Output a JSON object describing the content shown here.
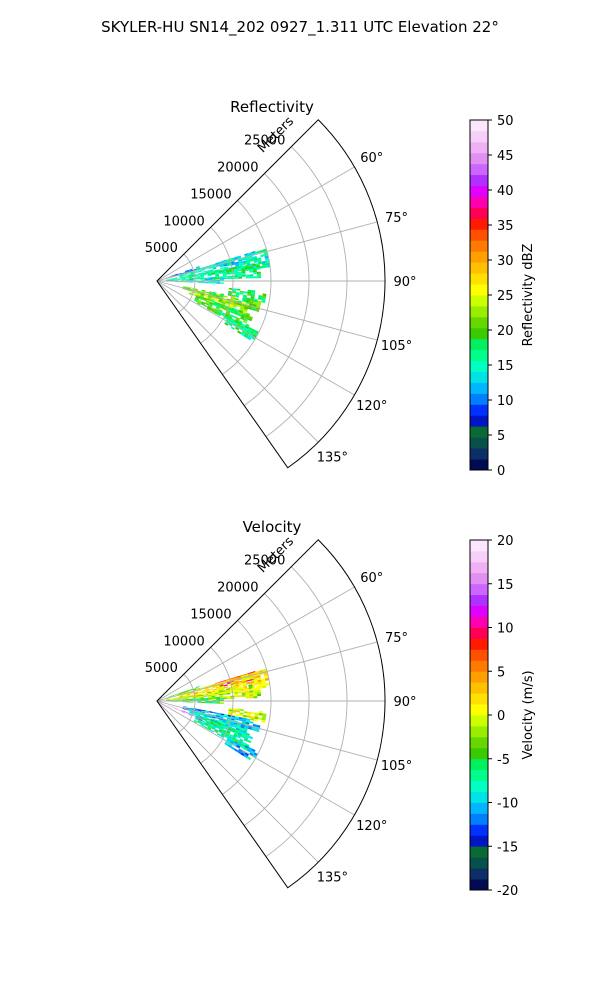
{
  "figure_title": "SKYLER-HU  SN14_202  0927_1.311 UTC Elevation 22°",
  "chart_data": [
    {
      "type": "heatmap",
      "subtype": "polar-sector",
      "title": "Reflectivity",
      "range_label": "Meters",
      "r_ticks": [
        "5000",
        "10000",
        "15000",
        "20000",
        "25000"
      ],
      "r_values": [
        5000,
        10000,
        15000,
        20000,
        25000
      ],
      "r_max": 30000,
      "theta_ticks": [
        "60°",
        "75°",
        "90°",
        "105°",
        "120°",
        "135°"
      ],
      "theta_values": [
        60,
        75,
        90,
        105,
        120,
        135
      ],
      "theta_range": [
        45,
        145
      ],
      "grid": true,
      "colorbar": {
        "label": "Reflectivity dBZ",
        "min": 0,
        "max": 50,
        "ticks": [
          "0",
          "5",
          "10",
          "15",
          "20",
          "25",
          "30",
          "35",
          "40",
          "45",
          "50"
        ],
        "colors": [
          "#000b52",
          "#0b2f66",
          "#08514b",
          "#0a6a36",
          "#0015c4",
          "#0032ff",
          "#0080ff",
          "#00b7ff",
          "#00e2e6",
          "#00ffc0",
          "#00ff8a",
          "#00f060",
          "#3acc00",
          "#66d800",
          "#99ee00",
          "#ccff00",
          "#ffff00",
          "#ffe000",
          "#ffc000",
          "#ffa000",
          "#ff7a00",
          "#ff5000",
          "#ff1a00",
          "#ff0055",
          "#ff00b0",
          "#e000ff",
          "#b030ff",
          "#cc66ff",
          "#e090f0",
          "#f0b0f4",
          "#f7d0f9",
          "#fbe6fc"
        ]
      },
      "echoes": [
        {
          "az": 72,
          "r0": 400,
          "r1": 5500,
          "w": 3,
          "val": 10
        },
        {
          "az": 75,
          "r0": 8000,
          "r1": 13500,
          "w": 4,
          "val": 13
        },
        {
          "az": 78,
          "r0": 3000,
          "r1": 15000,
          "w": 9,
          "val": 15
        },
        {
          "az": 84,
          "r0": 1200,
          "r1": 13500,
          "w": 8,
          "val": 17
        },
        {
          "az": 89,
          "r0": 800,
          "r1": 8500,
          "w": 5,
          "val": 14
        },
        {
          "az": 98,
          "r0": 9500,
          "r1": 14500,
          "w": 5,
          "val": 18
        },
        {
          "az": 104,
          "r0": 3500,
          "r1": 14000,
          "w": 6,
          "val": 20
        },
        {
          "az": 108,
          "r0": 4500,
          "r1": 12500,
          "w": 8,
          "val": 23
        },
        {
          "az": 114,
          "r0": 5500,
          "r1": 13500,
          "w": 9,
          "val": 19
        },
        {
          "az": 119,
          "r0": 10500,
          "r1": 15000,
          "w": 5,
          "val": 17
        }
      ]
    },
    {
      "type": "heatmap",
      "subtype": "polar-sector",
      "title": "Velocity",
      "range_label": "Meters",
      "r_ticks": [
        "5000",
        "10000",
        "15000",
        "20000",
        "25000"
      ],
      "r_values": [
        5000,
        10000,
        15000,
        20000,
        25000
      ],
      "r_max": 30000,
      "theta_ticks": [
        "60°",
        "75°",
        "90°",
        "105°",
        "120°",
        "135°"
      ],
      "theta_values": [
        60,
        75,
        90,
        105,
        120,
        135
      ],
      "theta_range": [
        45,
        145
      ],
      "grid": true,
      "colorbar": {
        "label": "Velocity (m/s)",
        "min": -20,
        "max": 20,
        "ticks": [
          "-20",
          "-15",
          "-10",
          "-5",
          "0",
          "5",
          "10",
          "15",
          "20"
        ],
        "colors": [
          "#000b52",
          "#0b2f66",
          "#08514b",
          "#0a6a36",
          "#0015c4",
          "#0032ff",
          "#0080ff",
          "#00b7ff",
          "#00e2e6",
          "#00ffc0",
          "#00ff8a",
          "#00f060",
          "#3acc00",
          "#66d800",
          "#99ee00",
          "#ccff00",
          "#ffff00",
          "#ffe000",
          "#ffc000",
          "#ffa000",
          "#ff7a00",
          "#ff5000",
          "#ff1a00",
          "#ff0055",
          "#ff00b0",
          "#e000ff",
          "#b030ff",
          "#cc66ff",
          "#e090f0",
          "#f0b0f4",
          "#f7d0f9",
          "#fbe6fc"
        ]
      },
      "echoes": [
        {
          "az": 72,
          "r0": 400,
          "r1": 5500,
          "w": 3,
          "val": -3
        },
        {
          "az": 75,
          "r0": 8000,
          "r1": 13500,
          "w": 4,
          "val": 8
        },
        {
          "az": 78,
          "r0": 3000,
          "r1": 15000,
          "w": 9,
          "val": 2
        },
        {
          "az": 84,
          "r0": 1200,
          "r1": 13500,
          "w": 8,
          "val": -1
        },
        {
          "az": 89,
          "r0": 800,
          "r1": 8500,
          "w": 5,
          "val": -5
        },
        {
          "az": 98,
          "r0": 9500,
          "r1": 14500,
          "w": 5,
          "val": 0
        },
        {
          "az": 104,
          "r0": 3500,
          "r1": 14000,
          "w": 6,
          "val": -11
        },
        {
          "az": 108,
          "r0": 4500,
          "r1": 12500,
          "w": 8,
          "val": -9
        },
        {
          "az": 114,
          "r0": 5500,
          "r1": 13500,
          "w": 9,
          "val": -7
        },
        {
          "az": 119,
          "r0": 10500,
          "r1": 15000,
          "w": 5,
          "val": -10
        },
        {
          "az": 112,
          "r0": 1500,
          "r1": 6500,
          "w": 3,
          "val": 16
        }
      ]
    }
  ]
}
